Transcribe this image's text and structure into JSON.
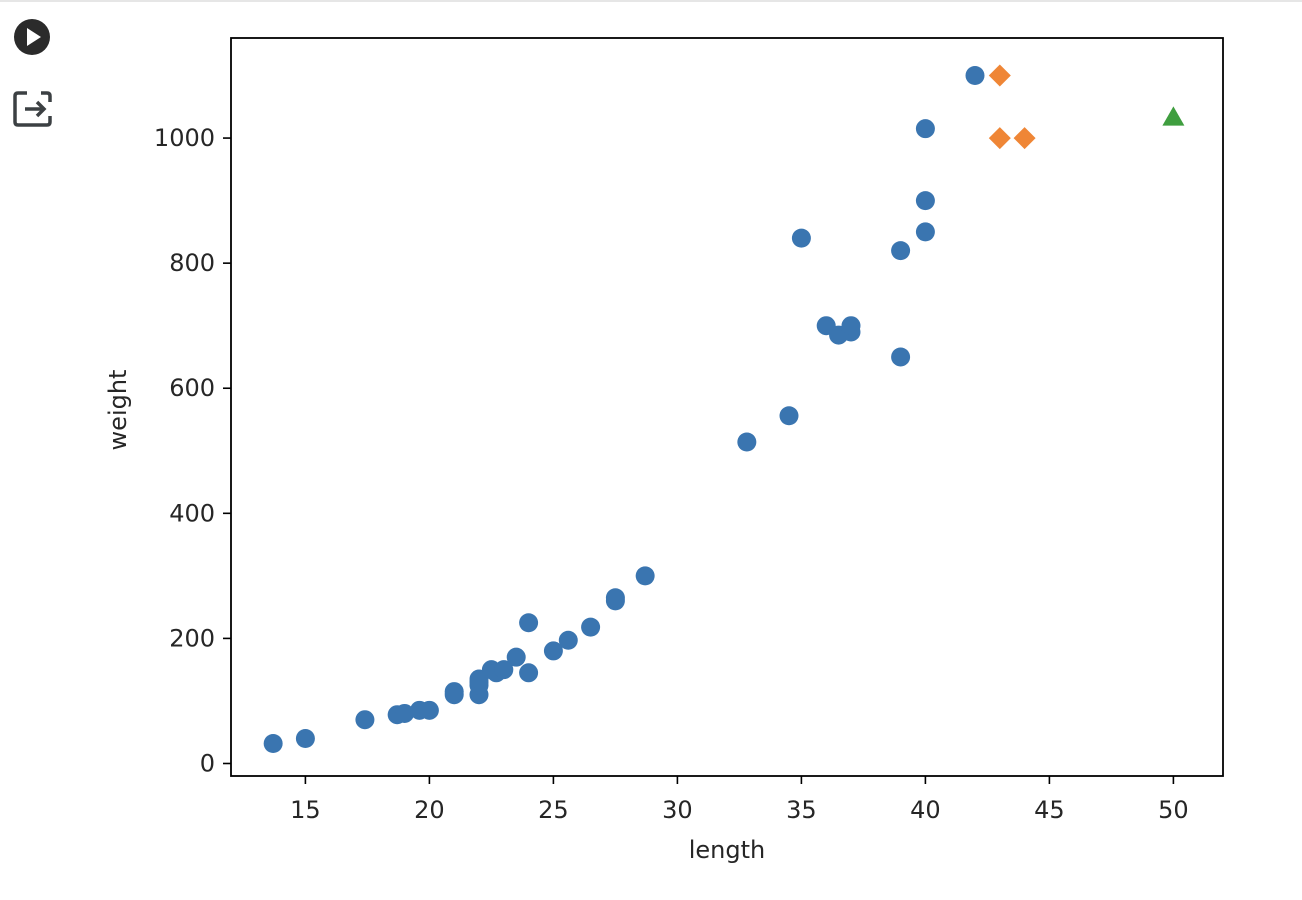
{
  "cell_toolbar": {
    "run_icon": "play-circle-icon",
    "output_icon": "output-redirect-icon"
  },
  "chart_data": {
    "type": "scatter",
    "title": "",
    "xlabel": "length",
    "ylabel": "weight",
    "xlim": [
      12,
      52
    ],
    "ylim": [
      -20,
      1160
    ],
    "xticks": [
      15,
      20,
      25,
      30,
      35,
      40,
      45,
      50
    ],
    "xtick_labels": [
      "15",
      "20",
      "25",
      "30",
      "35",
      "40",
      "45",
      "50"
    ],
    "yticks": [
      0,
      200,
      400,
      600,
      800,
      1000
    ],
    "ytick_labels": [
      "0",
      "200",
      "400",
      "600",
      "800",
      "1000"
    ],
    "grid": false,
    "legend": "none",
    "series": [
      {
        "marker": "circle",
        "color": "#3a75b0",
        "x": [
          13.7,
          15.0,
          17.4,
          18.7,
          19.0,
          19.6,
          20.0,
          21.0,
          21.0,
          22.0,
          22.0,
          22.0,
          22.0,
          22.5,
          22.7,
          23.0,
          23.5,
          24.0,
          24.0,
          25.0,
          25.6,
          26.5,
          27.5,
          27.5,
          28.7,
          32.8,
          34.5,
          35.0,
          36.0,
          36.5,
          37.0,
          37.0,
          39.0,
          39.0,
          40.0,
          40.0,
          40.0,
          42.0
        ],
        "y": [
          32,
          40,
          70,
          78,
          80,
          85,
          85,
          110,
          115,
          110,
          125,
          130,
          135,
          150,
          145,
          150,
          170,
          225,
          145,
          180,
          197,
          218,
          260,
          265,
          300,
          514,
          556,
          840,
          700,
          685,
          690,
          700,
          650,
          820,
          850,
          900,
          1015,
          1100
        ]
      },
      {
        "marker": "diamond",
        "color": "#ef8636",
        "x": [
          43.0,
          43.0,
          44.0
        ],
        "y": [
          1100,
          1000,
          1000
        ]
      },
      {
        "marker": "triangle",
        "color": "#3f9e3f",
        "x": [
          50
        ],
        "y": [
          1033
        ]
      }
    ]
  }
}
